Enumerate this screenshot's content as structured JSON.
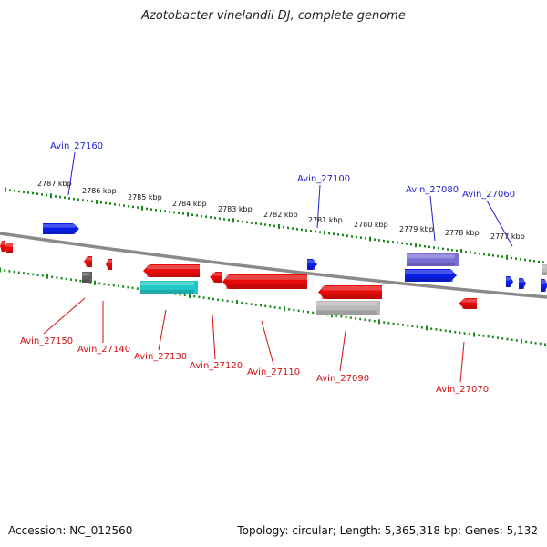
{
  "title": "Azotobacter vinelandii DJ, complete genome",
  "footer": {
    "accession": "Accession: NC_012560",
    "topology": "Topology: circular; Length: 5,365,318 bp; Genes: 5,132"
  },
  "colors": {
    "forward_gene": "#0a1ee6",
    "reverse_gene": "#e60a0a",
    "rna_gene": "#22c8c8",
    "pseudo_gene": "#b9b9b9",
    "other_gene": "#7a6fd6",
    "small_gene": "#606060",
    "backbone": "#7a7a7a",
    "ticks": "#1a8a1a",
    "forward_label": "#1f1fcf",
    "reverse_label": "#d01010"
  },
  "scale_labels": [
    "2787 kbp",
    "2786 kbp",
    "2785 kbp",
    "2784 kbp",
    "2783 kbp",
    "2782 kbp",
    "2781 kbp",
    "2780 kbp",
    "2779 kbp",
    "2778 kbp",
    "2777 kbp"
  ],
  "forward_labels": [
    "Avin_27160",
    "Avin_27100",
    "Avin_27080",
    "Avin_27060"
  ],
  "reverse_labels": [
    "Avin_27150",
    "Avin_27140",
    "Avin_27130",
    "Avin_27120",
    "Avin_27110",
    "Avin_27090",
    "Avin_27070"
  ]
}
